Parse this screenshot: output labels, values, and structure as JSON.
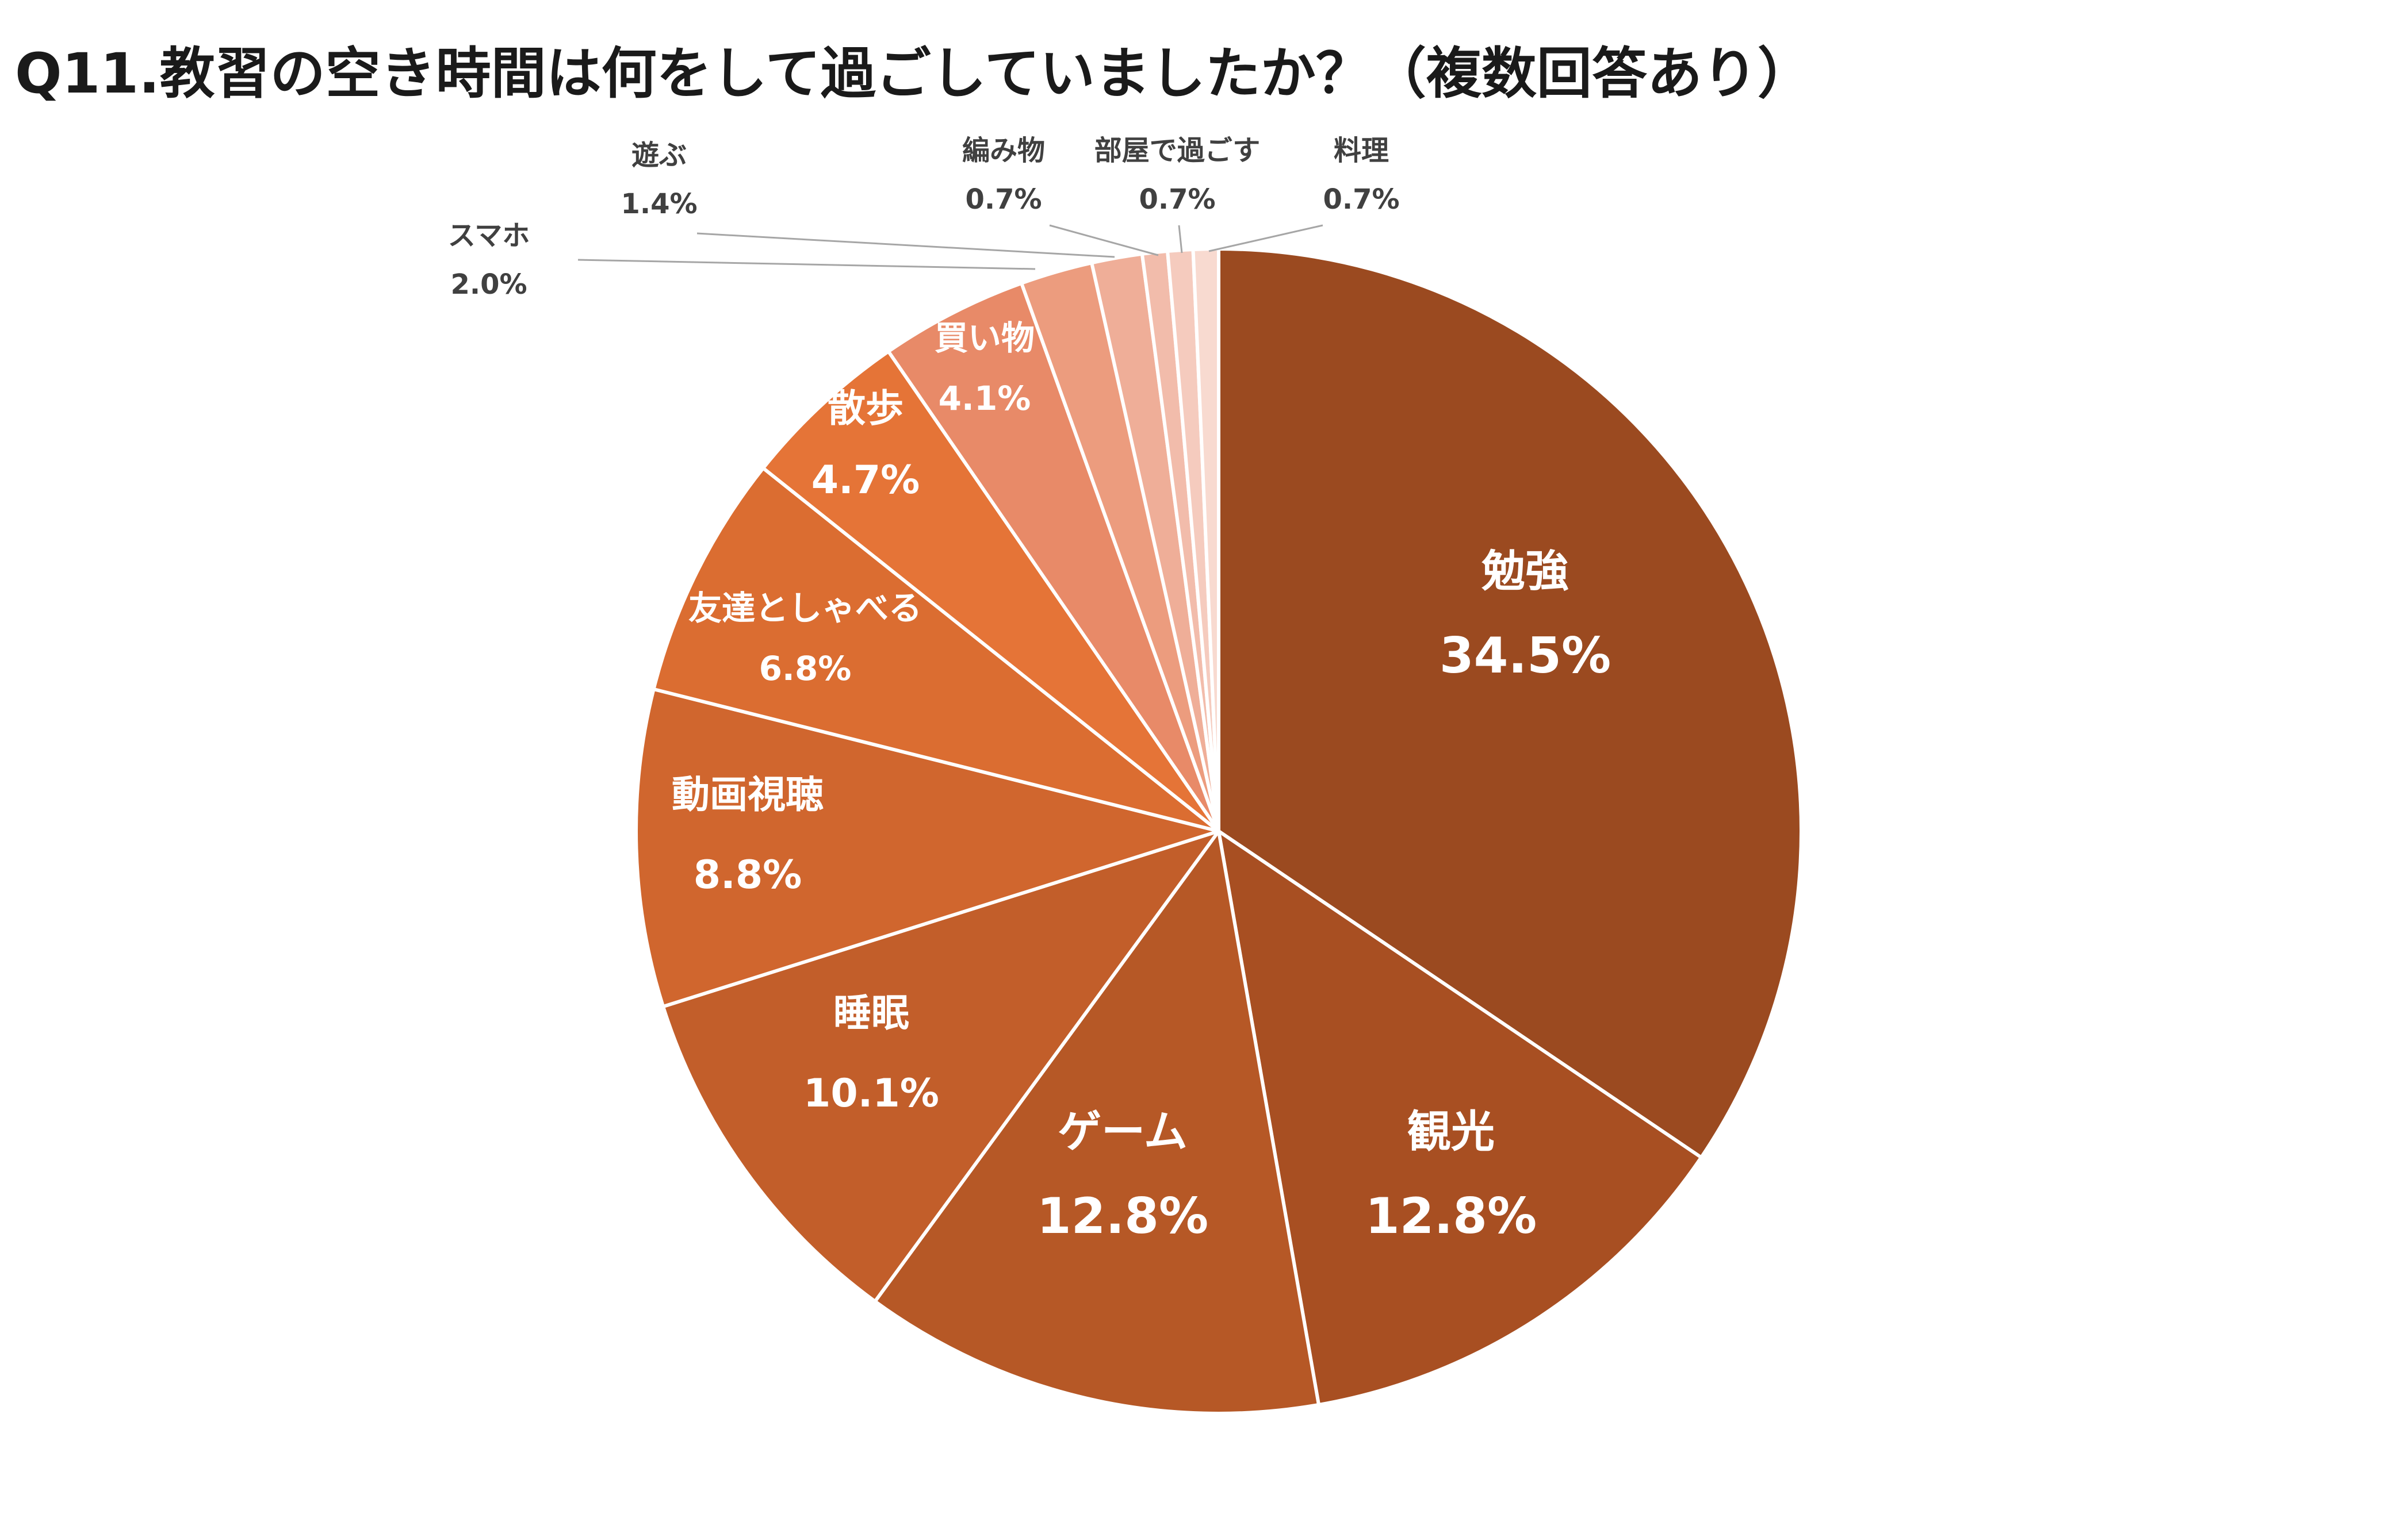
{
  "chart_data": {
    "type": "pie",
    "title": "Q11.教習の空き時間は何をして過ごしていましたか？（複数回答あり）",
    "slices": [
      {
        "label": "勉強",
        "value": 34.5,
        "display": "34.5%",
        "color": "#9B4A20"
      },
      {
        "label": "観光",
        "value": 12.8,
        "display": "12.8%",
        "color": "#A84F22"
      },
      {
        "label": "ゲーム",
        "value": 12.8,
        "display": "12.8%",
        "color": "#B65826"
      },
      {
        "label": "睡眠",
        "value": 10.1,
        "display": "10.1%",
        "color": "#C25E2A"
      },
      {
        "label": "動画視聴",
        "value": 8.8,
        "display": "8.8%",
        "color": "#D0662E"
      },
      {
        "label": "友達としゃべる",
        "value": 6.8,
        "display": "6.8%",
        "color": "#DB6D31"
      },
      {
        "label": "散歩",
        "value": 4.7,
        "display": "4.7%",
        "color": "#E57437"
      },
      {
        "label": "買い物",
        "value": 4.1,
        "display": "4.1%",
        "color": "#E88A68"
      },
      {
        "label": "スマホ",
        "value": 2.0,
        "display": "2.0%",
        "color": "#EC9C7E"
      },
      {
        "label": "遊ぶ",
        "value": 1.4,
        "display": "1.4%",
        "color": "#EFAE98"
      },
      {
        "label": "編み物",
        "value": 0.7,
        "display": "0.7%",
        "color": "#F2BCAB"
      },
      {
        "label": "部屋で過ごす",
        "value": 0.7,
        "display": "0.7%",
        "color": "#F5CBBE"
      },
      {
        "label": "料理",
        "value": 0.7,
        "display": "0.7%",
        "color": "#F8DAD0"
      }
    ],
    "start_angle": "12 o'clock",
    "direction": "clockwise",
    "legend": "none",
    "labels": "category name and percent on or beside each slice"
  }
}
